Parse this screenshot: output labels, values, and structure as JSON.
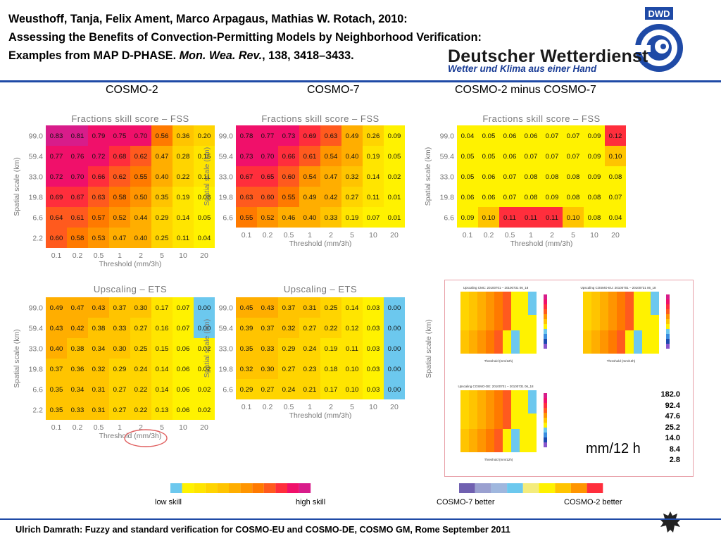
{
  "header": {
    "line1": "Weusthoff, Tanja, Felix Ament, Marco Arpagaus, Mathias W. Rotach, 2010:",
    "line2": "Assessing the Benefits of Convection-Permitting Models by Neighborhood Verification:",
    "line3_pre": "Examples from MAP D-PHASE. ",
    "line3_italic": "Mon. Wea. Rev.",
    "line3_post": ", 138, 3418–3433."
  },
  "logo": {
    "badge": "DWD",
    "name": "Deutscher Wetterdienst",
    "tagline": "Wetter und Klima aus einer Hand"
  },
  "columns": [
    "COSMO-2",
    "COSMO-7",
    "COSMO-2 minus COSMO-7"
  ],
  "axes": {
    "ylabel": "Spatial scale (km)",
    "xlabel": "Threshold (mm/3h)"
  },
  "panels": {
    "fss_title": "Fractions skill score – FSS",
    "ets_title": "Upscaling – ETS",
    "fss_y": [
      "99.0",
      "59.4",
      "33.0",
      "19.8",
      "6.6",
      "2.2"
    ],
    "fss_y_short": [
      "99.0",
      "59.4",
      "33.0",
      "19.8",
      "6.6"
    ],
    "x": [
      "0.1",
      "0.2",
      "0.5",
      "1",
      "2",
      "5",
      "10",
      "20"
    ]
  },
  "chart_data": [
    {
      "type": "heatmap",
      "name": "COSMO-2 FSS",
      "x": [
        "0.1",
        "0.2",
        "0.5",
        "1",
        "2",
        "5",
        "10",
        "20"
      ],
      "y": [
        "99.0",
        "59.4",
        "33.0",
        "19.8",
        "6.6",
        "2.2"
      ],
      "values": [
        [
          0.83,
          0.81,
          0.79,
          0.75,
          0.7,
          0.56,
          0.36,
          0.2
        ],
        [
          0.77,
          0.76,
          0.72,
          0.68,
          0.62,
          0.47,
          0.28,
          0.15
        ],
        [
          0.72,
          0.7,
          0.66,
          0.62,
          0.55,
          0.4,
          0.22,
          0.11
        ],
        [
          0.69,
          0.67,
          0.63,
          0.58,
          0.5,
          0.35,
          0.19,
          0.08
        ],
        [
          0.64,
          0.61,
          0.57,
          0.52,
          0.44,
          0.29,
          0.14,
          0.05
        ],
        [
          0.6,
          0.58,
          0.53,
          0.47,
          0.4,
          0.25,
          0.11,
          0.04
        ]
      ]
    },
    {
      "type": "heatmap",
      "name": "COSMO-7 FSS",
      "x": [
        "0.1",
        "0.2",
        "0.5",
        "1",
        "2",
        "5",
        "10",
        "20"
      ],
      "y": [
        "99.0",
        "59.4",
        "33.0",
        "19.8",
        "6.6"
      ],
      "values": [
        [
          0.78,
          0.77,
          0.73,
          0.69,
          0.63,
          0.49,
          0.26,
          0.09
        ],
        [
          0.73,
          0.7,
          0.66,
          0.61,
          0.54,
          0.4,
          0.19,
          0.05
        ],
        [
          0.67,
          0.65,
          0.6,
          0.54,
          0.47,
          0.32,
          0.14,
          0.02
        ],
        [
          0.63,
          0.6,
          0.55,
          0.49,
          0.42,
          0.27,
          0.11,
          0.01
        ],
        [
          0.55,
          0.52,
          0.46,
          0.4,
          0.33,
          0.19,
          0.07,
          0.01
        ]
      ]
    },
    {
      "type": "heatmap",
      "name": "COSMO-2 minus COSMO-7 FSS",
      "x": [
        "0.1",
        "0.2",
        "0.5",
        "1",
        "2",
        "5",
        "10",
        "20"
      ],
      "y": [
        "99.0",
        "59.4",
        "33.0",
        "19.8",
        "6.6"
      ],
      "values": [
        [
          0.04,
          0.05,
          0.06,
          0.06,
          0.07,
          0.07,
          0.09,
          0.12
        ],
        [
          0.05,
          0.05,
          0.06,
          0.07,
          0.07,
          0.07,
          0.09,
          0.1
        ],
        [
          0.05,
          0.06,
          0.07,
          0.08,
          0.08,
          0.08,
          0.09,
          0.08
        ],
        [
          0.06,
          0.06,
          0.07,
          0.08,
          0.09,
          0.08,
          0.08,
          0.07
        ],
        [
          0.09,
          0.1,
          0.11,
          0.11,
          0.11,
          0.1,
          0.08,
          0.04
        ]
      ]
    },
    {
      "type": "heatmap",
      "name": "COSMO-2 ETS",
      "x": [
        "0.1",
        "0.2",
        "0.5",
        "1",
        "2",
        "5",
        "10",
        "20"
      ],
      "y": [
        "99.0",
        "59.4",
        "33.0",
        "19.8",
        "6.6",
        "2.2"
      ],
      "values": [
        [
          0.49,
          0.47,
          0.43,
          0.37,
          0.3,
          0.17,
          0.07,
          -0.0
        ],
        [
          0.43,
          0.42,
          0.38,
          0.33,
          0.27,
          0.16,
          0.07,
          0.0
        ],
        [
          0.4,
          0.38,
          0.34,
          0.3,
          0.25,
          0.15,
          0.06,
          0.02
        ],
        [
          0.37,
          0.36,
          0.32,
          0.29,
          0.24,
          0.14,
          0.06,
          0.02
        ],
        [
          0.35,
          0.34,
          0.31,
          0.27,
          0.22,
          0.14,
          0.06,
          0.02
        ],
        [
          0.35,
          0.33,
          0.31,
          0.27,
          0.22,
          0.13,
          0.06,
          0.02
        ]
      ]
    },
    {
      "type": "heatmap",
      "name": "COSMO-7 ETS",
      "x": [
        "0.1",
        "0.2",
        "0.5",
        "1",
        "2",
        "5",
        "10",
        "20"
      ],
      "y": [
        "99.0",
        "59.4",
        "33.0",
        "19.8",
        "6.6"
      ],
      "values": [
        [
          0.45,
          0.43,
          0.37,
          0.31,
          0.25,
          0.14,
          0.03,
          -0.0
        ],
        [
          0.39,
          0.37,
          0.32,
          0.27,
          0.22,
          0.12,
          0.03,
          -0.0
        ],
        [
          0.35,
          0.33,
          0.29,
          0.24,
          0.19,
          0.11,
          0.03,
          0.0
        ],
        [
          0.32,
          0.3,
          0.27,
          0.23,
          0.18,
          0.1,
          0.03,
          0.0
        ],
        [
          0.29,
          0.27,
          0.24,
          0.21,
          0.17,
          0.1,
          0.03,
          0.0
        ]
      ]
    }
  ],
  "inset": {
    "legend_values": [
      "182.0",
      "92.4",
      "47.6",
      "25.2",
      "14.0",
      "8.4",
      "2.8"
    ],
    "unit": "mm/12 h",
    "mini_titles": [
      "Upscaling CMC: 20100701 – 20100731 06_18",
      "Upscaling COSMO-EU: 20100701 – 20100731 06_18",
      "Upscaling COSMO-DE: 20100701 – 20100731 06_18"
    ],
    "mini_x": "Threshold (mm/12h)"
  },
  "colorbar": {
    "low": "low skill",
    "high": "high skill",
    "c7": "COSMO-7 better",
    "c2": "COSMO-2 better",
    "skill_colors": [
      "#6cc8ee",
      "#fff200",
      "#ffe500",
      "#ffd400",
      "#ffc400",
      "#ffae00",
      "#ff9500",
      "#ff7a00",
      "#ff5a1e",
      "#ff2e3c",
      "#f0106a",
      "#d81c8a"
    ],
    "diff_colors": [
      "#7060b0",
      "#9aa0d0",
      "#9fb7de",
      "#6cc8ee",
      "#f4ec7c",
      "#fff200",
      "#ffc400",
      "#ff9500",
      "#ff2e3c"
    ]
  },
  "footer": "Ulrich Damrath: Fuzzy and standard verification for COSMO-EU and COSMO-DE, COSMO GM, Rome September 2011"
}
